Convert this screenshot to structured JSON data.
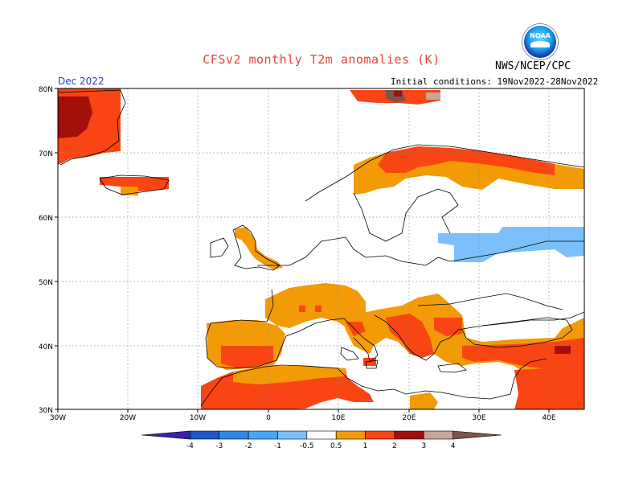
{
  "header": {
    "title": "CFSv2 monthly T2m anomalies (K)",
    "organization": "NWS/NCEP/CPC",
    "month": "Dec 2022",
    "initial_conditions": "Initial conditions: 19Nov2022-28Nov2022",
    "logo_text": "NOAA"
  },
  "map": {
    "lat_ticks": [
      "80N",
      "70N",
      "60N",
      "50N",
      "40N",
      "30N"
    ],
    "lon_ticks": [
      "30W",
      "20W",
      "10W",
      "0",
      "10E",
      "20E",
      "30E",
      "40E"
    ],
    "grid": true
  },
  "colorbar": {
    "labels": [
      "-4",
      "-3",
      "-2",
      "-1",
      "-0.5",
      "0.5",
      "1",
      "2",
      "3",
      "4"
    ],
    "colors": [
      "#3a22a8",
      "#1e55c8",
      "#2f86e6",
      "#46a6f5",
      "#7cc0fb",
      "#ffffff",
      "#f39a07",
      "#f94513",
      "#a20f0b",
      "#c7a597",
      "#7d5448"
    ]
  }
}
